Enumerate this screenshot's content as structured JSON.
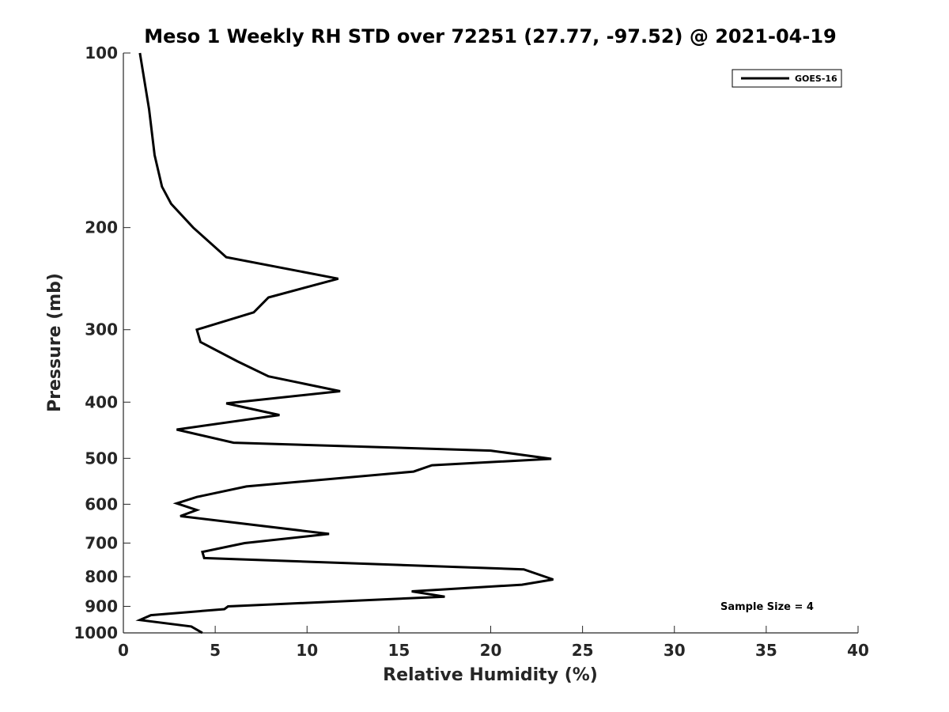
{
  "chart_data": {
    "type": "line",
    "title": "Meso 1 Weekly RH STD over 72251 (27.77, -97.52) @ 2021-04-19",
    "xlabel": "Relative Humidity (%)",
    "ylabel": "Pressure (mb)",
    "xlim": [
      0,
      40
    ],
    "ylim": [
      100,
      1000
    ],
    "yscale": "log",
    "yreversed": true,
    "x_ticks": [
      0,
      5,
      10,
      15,
      20,
      25,
      30,
      35,
      40
    ],
    "y_ticks": [
      100,
      200,
      300,
      400,
      500,
      600,
      700,
      800,
      900,
      1000
    ],
    "grid": false,
    "legend_position": "top-right",
    "annotation": "Sample Size = 4",
    "series": [
      {
        "name": "GOES-16",
        "color": "#000000",
        "points": [
          [
            0.9,
            100
          ],
          [
            1.4,
            125
          ],
          [
            1.7,
            150
          ],
          [
            2.1,
            170
          ],
          [
            2.6,
            182
          ],
          [
            3.8,
            200
          ],
          [
            5.6,
            225
          ],
          [
            11.7,
            245
          ],
          [
            7.9,
            264
          ],
          [
            7.1,
            280
          ],
          [
            4.0,
            300
          ],
          [
            4.2,
            315
          ],
          [
            6.2,
            340
          ],
          [
            7.9,
            361
          ],
          [
            11.8,
            383
          ],
          [
            5.6,
            402
          ],
          [
            8.5,
            421
          ],
          [
            2.9,
            446
          ],
          [
            6.0,
            470
          ],
          [
            20.0,
            485
          ],
          [
            23.3,
            501
          ],
          [
            16.8,
            514
          ],
          [
            15.8,
            527
          ],
          [
            6.7,
            559
          ],
          [
            4.0,
            583
          ],
          [
            2.9,
            598
          ],
          [
            4.0,
            614
          ],
          [
            3.1,
            629
          ],
          [
            11.2,
            675
          ],
          [
            6.6,
            700
          ],
          [
            4.3,
            725
          ],
          [
            4.4,
            743
          ],
          [
            21.8,
            777
          ],
          [
            23.4,
            809
          ],
          [
            21.7,
            826
          ],
          [
            15.7,
            848
          ],
          [
            17.5,
            866
          ],
          [
            5.7,
            900
          ],
          [
            5.5,
            910
          ],
          [
            1.5,
            932
          ],
          [
            0.9,
            950
          ],
          [
            3.7,
            975
          ],
          [
            4.3,
            1000
          ]
        ]
      }
    ]
  }
}
